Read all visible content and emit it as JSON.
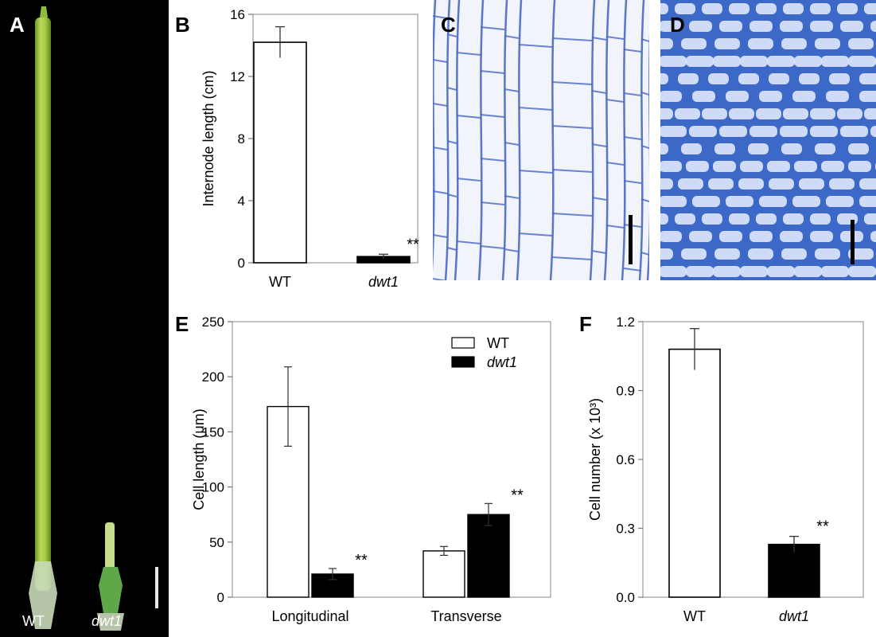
{
  "panels": {
    "a": {
      "letter": "A",
      "wt_label": "WT",
      "mutant_label": "dwt1"
    },
    "b": {
      "letter": "B"
    },
    "c": {
      "letter": "C"
    },
    "d": {
      "letter": "D"
    },
    "e": {
      "letter": "E"
    },
    "f": {
      "letter": "F"
    }
  },
  "colors": {
    "wt_fill": "#ffffff",
    "mutant_fill": "#000000",
    "stem_green": "#9cc43a",
    "stain_blue": "#3b5fc0"
  },
  "chart_data": [
    {
      "id": "B",
      "type": "bar",
      "categories": [
        "WT",
        "dwt1"
      ],
      "values": [
        14.2,
        0.4
      ],
      "errors": [
        1.0,
        0.15
      ],
      "significance": [
        "",
        "**"
      ],
      "fills": [
        "#ffffff",
        "#000000"
      ],
      "ylabel": "Internode length (cm)",
      "ylim": [
        0,
        16
      ],
      "yticks": [
        0,
        4,
        8,
        12,
        16
      ],
      "grid": false
    },
    {
      "id": "E",
      "type": "bar",
      "categories": [
        "Longitudinal",
        "Transverse"
      ],
      "series": [
        {
          "name": "WT",
          "values": [
            173,
            42
          ],
          "errors": [
            36,
            4
          ],
          "significance": [
            "",
            ""
          ],
          "fill": "#ffffff"
        },
        {
          "name": "dwt1",
          "values": [
            21,
            75
          ],
          "errors": [
            5,
            10
          ],
          "significance": [
            "**",
            "**"
          ],
          "fill": "#000000"
        }
      ],
      "ylabel": "Cell length (μm)",
      "ylim": [
        0,
        250
      ],
      "yticks": [
        0,
        50,
        100,
        150,
        200,
        250
      ],
      "legend": "top-right",
      "grid": false
    },
    {
      "id": "F",
      "type": "bar",
      "categories": [
        "WT",
        "dwt1"
      ],
      "values": [
        1.08,
        0.23
      ],
      "errors": [
        0.09,
        0.035
      ],
      "significance": [
        "",
        "**"
      ],
      "fills": [
        "#ffffff",
        "#000000"
      ],
      "ylabel": "Cell number (x 10³)",
      "ylim": [
        0,
        1.2
      ],
      "yticks": [
        0,
        0.3,
        0.6,
        0.9,
        1.2
      ],
      "grid": false
    }
  ]
}
